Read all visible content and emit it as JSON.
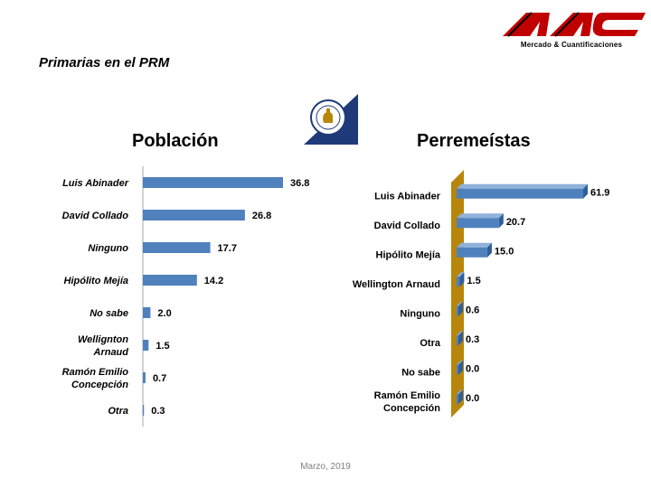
{
  "header": {
    "subtitle": "Primarias en el PRM",
    "brand_name": "Mercado & Cuantificaciones",
    "brand_color": "#c00000"
  },
  "footer": {
    "date": "Marzo, 2019"
  },
  "chart_data": [
    {
      "type": "bar",
      "orientation": "horizontal",
      "title": "Población",
      "categories": [
        "Luis Abinader",
        "David Collado",
        "Ninguno",
        "Hipólito Mejía",
        "No sabe",
        "Wellignton Arnaud",
        "Ramón Emilio Concepción",
        "Otra"
      ],
      "category_lines": [
        [
          "Luis Abinader"
        ],
        [
          "David Collado"
        ],
        [
          "Ninguno"
        ],
        [
          "Hipólito Mejía"
        ],
        [
          "No sabe"
        ],
        [
          "Wellignton",
          "Arnaud"
        ],
        [
          "Ramón Emilio",
          "Concepción"
        ],
        [
          "Otra"
        ]
      ],
      "values": [
        36.8,
        26.8,
        17.7,
        14.2,
        2.0,
        1.5,
        0.7,
        0.3
      ],
      "value_labels": [
        "36.8",
        "26.8",
        "17.7",
        "14.2",
        "2.0",
        "1.5",
        "0.7",
        "0.3"
      ],
      "color": "#4f81bd",
      "style": "flat"
    },
    {
      "type": "bar",
      "orientation": "horizontal",
      "title": "Perremeístas",
      "categories": [
        "Luis Abinader",
        "David Collado",
        "Hipólito Mejía",
        "Wellington Arnaud",
        "Ninguno",
        "Otra",
        "No sabe",
        "Ramón Emilio Concepción"
      ],
      "category_lines": [
        [
          "Luis Abinader"
        ],
        [
          "David Collado"
        ],
        [
          "Hipólito Mejía"
        ],
        [
          "Wellington Arnaud"
        ],
        [
          "Ninguno"
        ],
        [
          "Otra"
        ],
        [
          "No sabe"
        ],
        [
          "Ramón Emilio",
          "Concepción"
        ]
      ],
      "values": [
        61.9,
        20.7,
        15.0,
        1.5,
        0.6,
        0.3,
        0.0,
        0.0
      ],
      "value_labels": [
        "61.9",
        "20.7",
        "15.0",
        "1.5",
        "0.6",
        "0.3",
        "0.0",
        "0.0"
      ],
      "color": "#4f81bd",
      "wall_color": "#b8860b",
      "style": "3d"
    }
  ]
}
